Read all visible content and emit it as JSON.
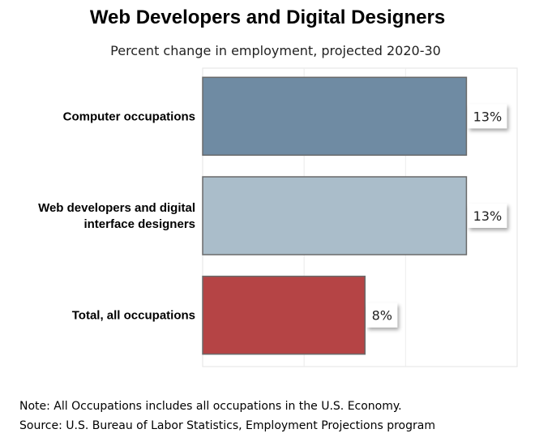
{
  "chart_data": {
    "type": "bar",
    "orientation": "horizontal",
    "title": "Web Developers and Digital Designers",
    "subtitle": "Percent change in employment, projected 2020-30",
    "categories": [
      [
        "Computer occupations"
      ],
      [
        "Web developers and digital",
        "interface designers"
      ],
      [
        "Total, all occupations"
      ]
    ],
    "values": [
      13,
      13,
      8
    ],
    "value_labels": [
      "13%",
      "13%",
      "8%"
    ],
    "colors": [
      "#6f8ba3",
      "#aabdca",
      "#b54445"
    ],
    "xlim": [
      0,
      15.5
    ],
    "grid": true,
    "legend": "none"
  },
  "footer": {
    "note": "Note: All Occupations includes all occupations in the U.S. Economy.",
    "source": "Source: U.S. Bureau of Labor Statistics, Employment Projections program"
  }
}
